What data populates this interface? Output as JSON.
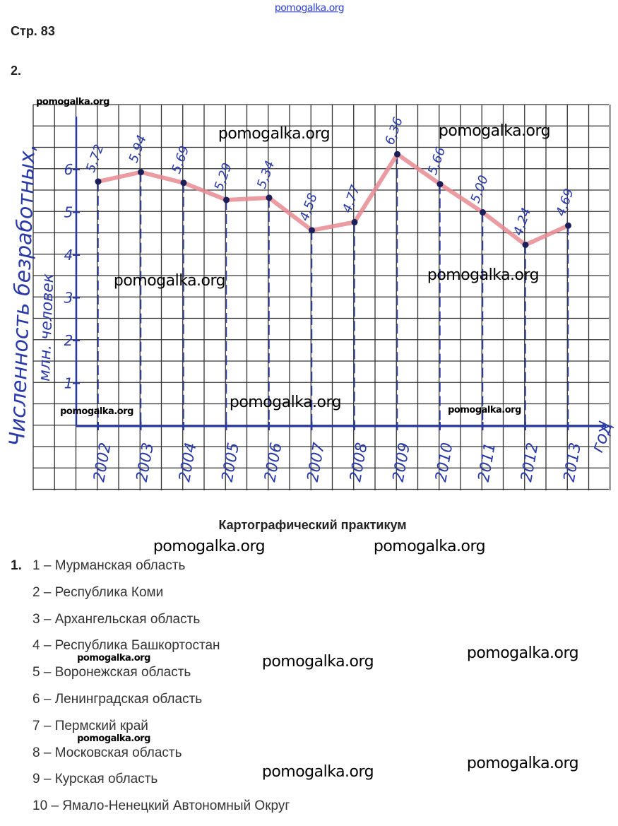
{
  "page_label": "Стр. 83",
  "task_number": "2.",
  "watermark_top": "pomogalka.org",
  "watermarks": [
    "pomogalka.org",
    "pomogalka.org",
    "pomogalka.org",
    "pomogalka.org",
    "pomogalka.org",
    "pomogalka.org",
    "pomogalka.org",
    "pomogalka.org",
    "pomogalka.org",
    "pomogalka.org",
    "pomogalka.org",
    "pomogalka.org",
    "pomogalka.org",
    "pomogalka.org",
    "pomogalka.org",
    "pomogalka.org"
  ],
  "chart_data": {
    "type": "line",
    "title": "",
    "xlabel": "год",
    "ylabel": "Численность безработных, млн. человек",
    "x": [
      "2002",
      "2003",
      "2004",
      "2005",
      "2006",
      "2007",
      "2008",
      "2009",
      "2010",
      "2011",
      "2012",
      "2013"
    ],
    "values": [
      5.72,
      5.94,
      5.69,
      5.29,
      5.34,
      4.58,
      4.77,
      6.36,
      5.66,
      5.0,
      4.24,
      4.69
    ],
    "data_labels": [
      "5,72",
      "5,94",
      "5,69",
      "5,29",
      "5,34",
      "4,58",
      "4,77",
      "6,36",
      "5,66",
      "5,00",
      "4,24",
      "4,69"
    ],
    "yticks": [
      "1",
      "2",
      "3",
      "4",
      "5",
      "6"
    ],
    "ylim": [
      0,
      7
    ],
    "grid": true,
    "line_color": "#e88a92",
    "point_color": "#1a1f5a",
    "axis_color": "#2a3aa8"
  },
  "section": {
    "title": "Картографический практикум",
    "number": "1.",
    "items": [
      "1 – Мурманская область",
      "2 – Республика Коми",
      "3 – Архангельская область",
      "4 – Республика Башкортостан",
      "5 – Воронежская область",
      "6 – Ленинградская область",
      "7 – Пермский край",
      "8 – Московская область",
      "9 – Курская область",
      "10 – Ямало-Ненецкий Автономный Округ"
    ]
  }
}
